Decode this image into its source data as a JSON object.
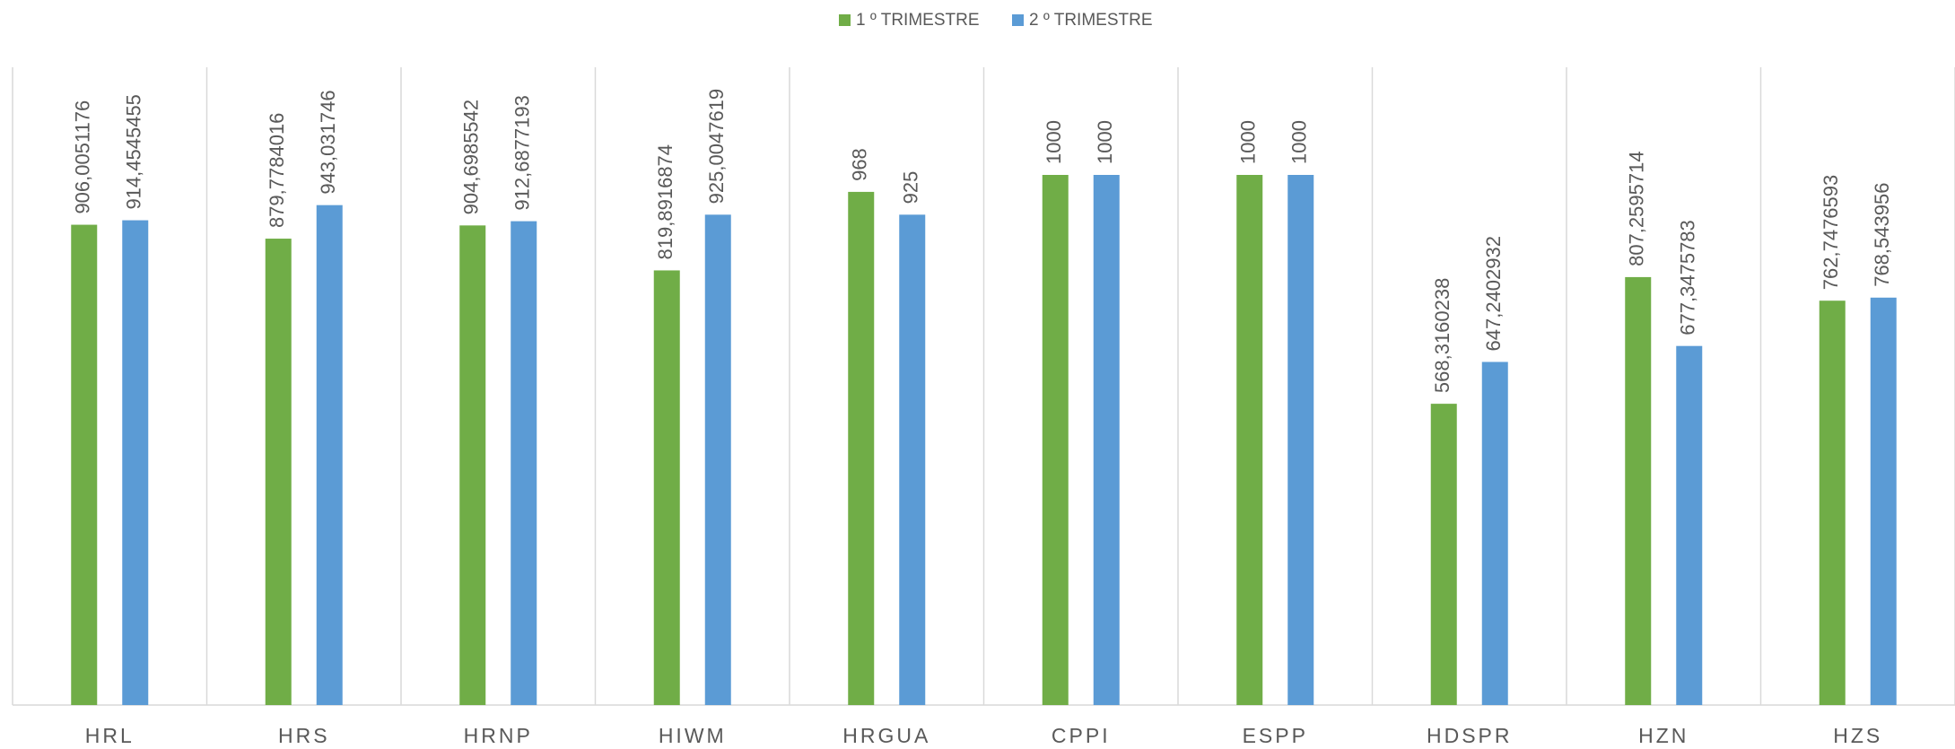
{
  "chart_data": {
    "type": "bar",
    "categories": [
      "HRL",
      "HRS",
      "HRNP",
      "HIWM",
      "HRGUA",
      "CPPI",
      "ESPP",
      "HDSPR",
      "HZN",
      "HZS"
    ],
    "series": [
      {
        "name": "1 º TRIMESTRE",
        "color": "#70ad47",
        "values": [
          906.0051176,
          879.7784016,
          904.6985542,
          819.8916874,
          968,
          1000,
          1000,
          568.3160238,
          807.2595714,
          762.7476593
        ],
        "value_labels": [
          "906,0051176",
          "879,7784016",
          "904,6985542",
          "819,8916874",
          "968",
          "1000",
          "1000",
          "568,3160238",
          "807,2595714",
          "762,7476593"
        ]
      },
      {
        "name": "2 º TRIMESTRE",
        "color": "#5b9bd5",
        "values": [
          914.4545455,
          943.031746,
          912.6877193,
          925.0047619,
          925,
          1000,
          1000,
          647.2402932,
          677.3475783,
          768.543956
        ],
        "value_labels": [
          "914,4545455",
          "943,031746",
          "912,6877193",
          "925,0047619",
          "925",
          "1000",
          "1000",
          "647,2402932",
          "677,3475783",
          "768,543956"
        ]
      }
    ],
    "ylim": [
      0,
      1000
    ],
    "legend": "top"
  }
}
